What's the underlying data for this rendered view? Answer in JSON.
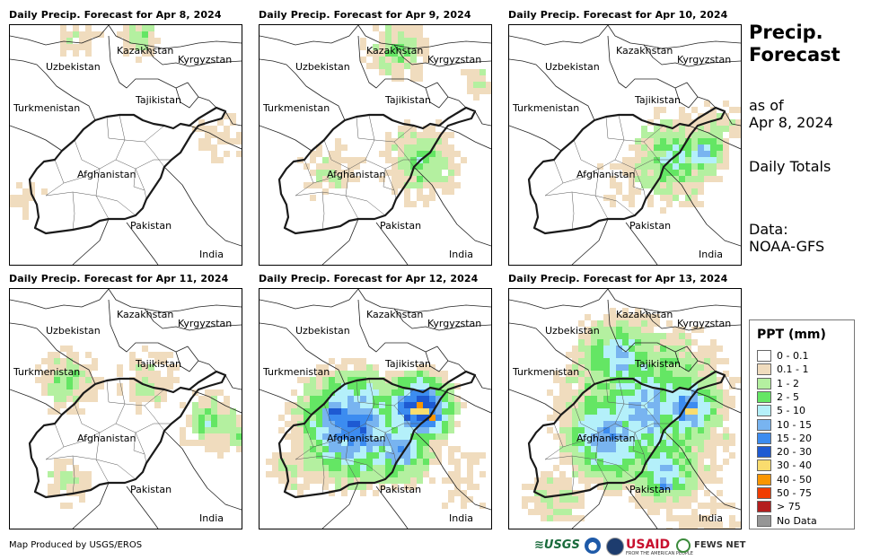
{
  "panels": [
    {
      "title": "Daily Precip. Forecast for Apr 8, 2024"
    },
    {
      "title": "Daily Precip. Forecast for Apr 9, 2024"
    },
    {
      "title": "Daily Precip. Forecast for Apr 10, 2024"
    },
    {
      "title": "Daily Precip. Forecast for Apr 11, 2024"
    },
    {
      "title": "Daily Precip. Forecast for Apr 12, 2024"
    },
    {
      "title": "Daily Precip. Forecast for Apr 13, 2024"
    }
  ],
  "map_labels": {
    "kazakhstan": "Kazakhstan",
    "kyrgyzstan": "Kyrgyzstan",
    "uzbekistan": "Uzbekistan",
    "tajikistan": "Tajikistan",
    "turkmenistan": "Turkmenistan",
    "afghanistan": "Afghanistan",
    "pakistan": "Pakistan",
    "india": "India"
  },
  "side": {
    "title": "Precip.\nForecast",
    "asof_label": "as of",
    "asof_date": "Apr 8, 2024",
    "totals": "Daily Totals",
    "data_label": "Data:",
    "data_source": "NOAA-GFS"
  },
  "legend": {
    "title": "PPT (mm)",
    "items": [
      {
        "label": "0 - 0.1",
        "color": "#ffffff"
      },
      {
        "label": "0.1 - 1",
        "color": "#f0dcbe"
      },
      {
        "label": "1 - 2",
        "color": "#b4f0a0"
      },
      {
        "label": "2 - 5",
        "color": "#64e664"
      },
      {
        "label": "5 - 10",
        "color": "#b4f0fa"
      },
      {
        "label": "10 - 15",
        "color": "#78b4f0"
      },
      {
        "label": "15 - 20",
        "color": "#3c8cf0"
      },
      {
        "label": "20 - 30",
        "color": "#1e5ad2"
      },
      {
        "label": "30 - 40",
        "color": "#fadc6e"
      },
      {
        "label": "40 - 50",
        "color": "#fa9600"
      },
      {
        "label": "50 - 75",
        "color": "#f03c00"
      },
      {
        "label": "> 75",
        "color": "#b41e1e"
      },
      {
        "label": "No Data",
        "color": "#969696"
      }
    ]
  },
  "precip_levels": [
    [
      1,
      2
    ],
    [
      1,
      2,
      3
    ],
    [
      1,
      2,
      3,
      4,
      5,
      6
    ],
    [
      1,
      2,
      3
    ],
    [
      1,
      2,
      3,
      4,
      5,
      6,
      7,
      8,
      9,
      10
    ],
    [
      1,
      2,
      3,
      4,
      5,
      6,
      7,
      8,
      10
    ]
  ],
  "credit": "Map Produced by USGS/EROS",
  "logos": {
    "usgs": "≋USGS",
    "usaid": "USAID",
    "usaid_sub": "FROM THE AMERICAN PEOPLE",
    "fews": "FEWS NET"
  }
}
